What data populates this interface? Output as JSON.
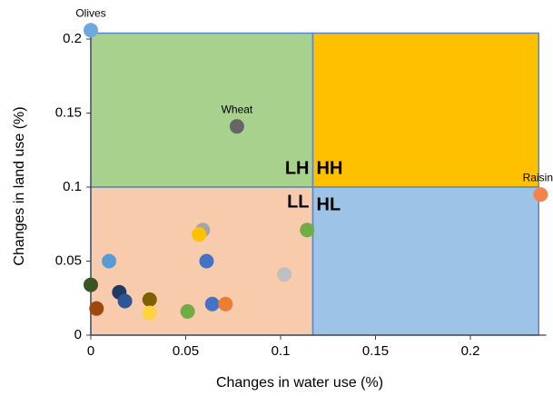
{
  "chart_data": {
    "type": "scatter",
    "xlabel": "Changes in water use (%)",
    "ylabel": "Changes in land use (%)",
    "xlim": [
      0,
      0.24
    ],
    "ylim": [
      0,
      0.21
    ],
    "xticks": [
      0,
      0.05,
      0.1,
      0.15,
      0.2
    ],
    "yticks": [
      0,
      0.05,
      0.1,
      0.15,
      0.2
    ],
    "quadrants": [
      {
        "label": "LH",
        "color": "#a9d18e",
        "xrange": [
          0,
          0.117
        ],
        "yrange": [
          0.1,
          0.204
        ]
      },
      {
        "label": "HH",
        "color": "#ffc000",
        "xrange": [
          0.117,
          0.236
        ],
        "yrange": [
          0.1,
          0.204
        ]
      },
      {
        "label": "LL",
        "color": "#f8cbad",
        "xrange": [
          0,
          0.117
        ],
        "yrange": [
          0,
          0.1
        ]
      },
      {
        "label": "HL",
        "color": "#9dc3e6",
        "xrange": [
          0.117,
          0.236
        ],
        "yrange": [
          0,
          0.1
        ]
      }
    ],
    "x": [
      0,
      0.077,
      0.237,
      0.059,
      0.057,
      0.114,
      0.0096,
      0.061,
      0.102,
      0,
      0.015,
      0.018,
      0.031,
      0.003,
      0.031,
      0.051,
      0.064,
      0.071
    ],
    "y": [
      0.206,
      0.141,
      0.095,
      0.071,
      0.068,
      0.071,
      0.05,
      0.05,
      0.041,
      0.034,
      0.029,
      0.023,
      0.024,
      0.018,
      0.015,
      0.016,
      0.021,
      0.021
    ],
    "point_labels": [
      "Olives",
      "Wheat",
      "Raisins",
      null,
      null,
      null,
      null,
      null,
      null,
      null,
      null,
      null,
      null,
      null,
      null,
      null,
      null,
      null
    ],
    "colors": [
      "#6fa8dc",
      "#666666",
      "#f4844c",
      "#a5a5a5",
      "#ffc000",
      "#70ad47",
      "#5b9bd5",
      "#4472c4",
      "#bfbfbf",
      "#375623",
      "#203864",
      "#2f5597",
      "#7f6000",
      "#9e480e",
      "#ffd23f",
      "#70ad47",
      "#4472c4",
      "#ed7d31"
    ]
  }
}
